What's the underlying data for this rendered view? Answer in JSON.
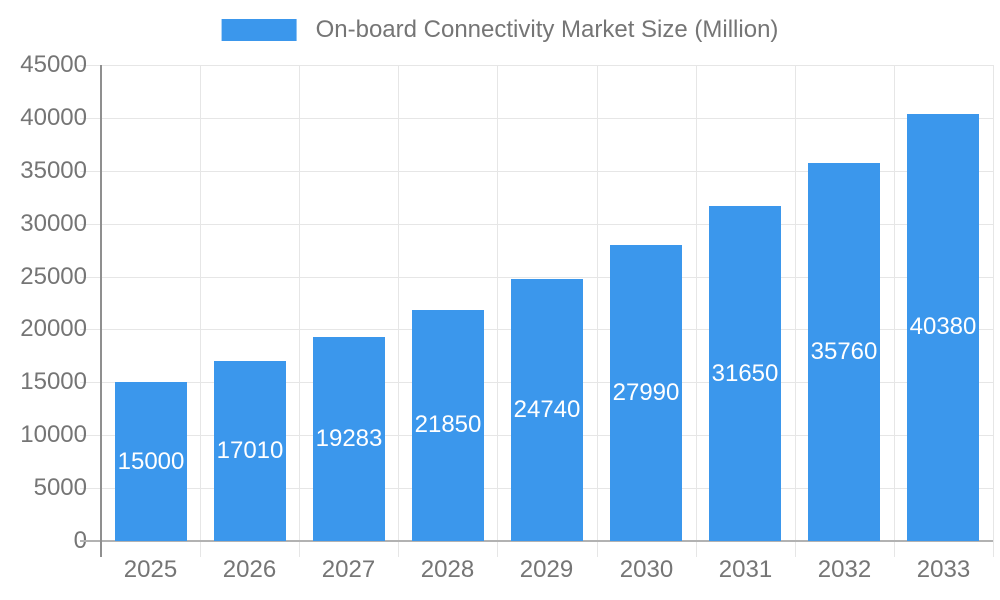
{
  "legend": {
    "label": "On-board Connectivity Market Size (Million)"
  },
  "chart_data": {
    "type": "bar",
    "title": "On-board Connectivity Market Size (Million)",
    "series_name": "On-board Connectivity Market Size (Million)",
    "categories": [
      "2025",
      "2026",
      "2027",
      "2028",
      "2029",
      "2030",
      "2031",
      "2032",
      "2033"
    ],
    "values": [
      15000,
      17010,
      19283,
      21850,
      24740,
      27990,
      31650,
      35760,
      40380
    ],
    "bar_value_labels": [
      "15000",
      "17010",
      "19283",
      "21850",
      "24740",
      "27990",
      "31650",
      "35760",
      "40380"
    ],
    "xlabel": "",
    "ylabel": "",
    "ylim": [
      0,
      45000
    ],
    "ytick_step": 5000,
    "yticks": [
      0,
      5000,
      10000,
      15000,
      20000,
      25000,
      30000,
      35000,
      40000,
      45000
    ],
    "grid": true,
    "legend_position": "top",
    "colors": {
      "bar": "#3B97EC",
      "bar_value_text": "#FFFFFF",
      "axis_text": "#757575",
      "gridline": "#E6E6E6",
      "y_axis_line": "#8F8F8F",
      "baseline": "#B2B2B2",
      "background": "#FFFFFF"
    }
  }
}
